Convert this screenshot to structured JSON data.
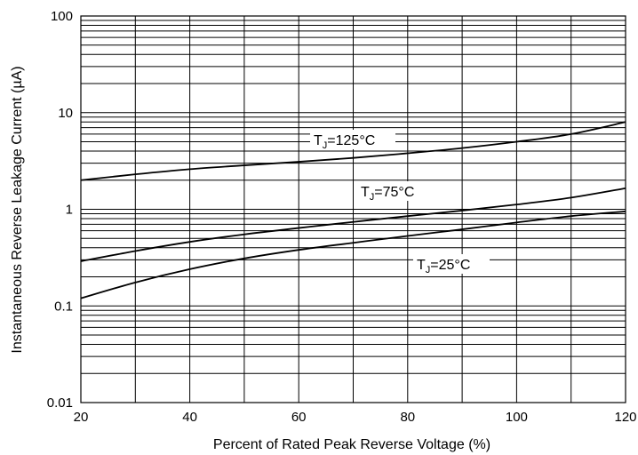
{
  "chart_data": {
    "type": "line",
    "title": "",
    "xlabel": "Percent of Rated Peak Reverse Voltage (%)",
    "ylabel": "Instantaneous Reverse Leakage Current (µA)",
    "xlim": [
      20,
      120
    ],
    "ylim": [
      0.01,
      100
    ],
    "yscale": "log",
    "grid": true,
    "x_ticks": [
      "20",
      "40",
      "60",
      "80",
      "100",
      "120"
    ],
    "y_ticks": [
      "0.01",
      "0.1",
      "1",
      "10",
      "100"
    ],
    "series": [
      {
        "name_main": "T",
        "name_sub": "J",
        "name_rest": "=125°C",
        "x": [
          20,
          30,
          40,
          50,
          60,
          70,
          80,
          90,
          100,
          110,
          120
        ],
        "y": [
          2.0,
          2.3,
          2.6,
          2.85,
          3.1,
          3.4,
          3.8,
          4.3,
          5.0,
          6.0,
          8.0
        ]
      },
      {
        "name_main": "T",
        "name_sub": "J",
        "name_rest": "=75°C",
        "x": [
          20,
          30,
          40,
          50,
          60,
          70,
          80,
          90,
          100,
          110,
          120
        ],
        "y": [
          0.29,
          0.37,
          0.46,
          0.55,
          0.64,
          0.74,
          0.85,
          0.97,
          1.12,
          1.32,
          1.65
        ]
      },
      {
        "name_main": "T",
        "name_sub": "J",
        "name_rest": "=25°C",
        "x": [
          20,
          30,
          40,
          50,
          60,
          70,
          80,
          90,
          100,
          110,
          120
        ],
        "y": [
          0.12,
          0.175,
          0.24,
          0.31,
          0.38,
          0.45,
          0.53,
          0.62,
          0.73,
          0.85,
          0.95
        ]
      }
    ]
  }
}
